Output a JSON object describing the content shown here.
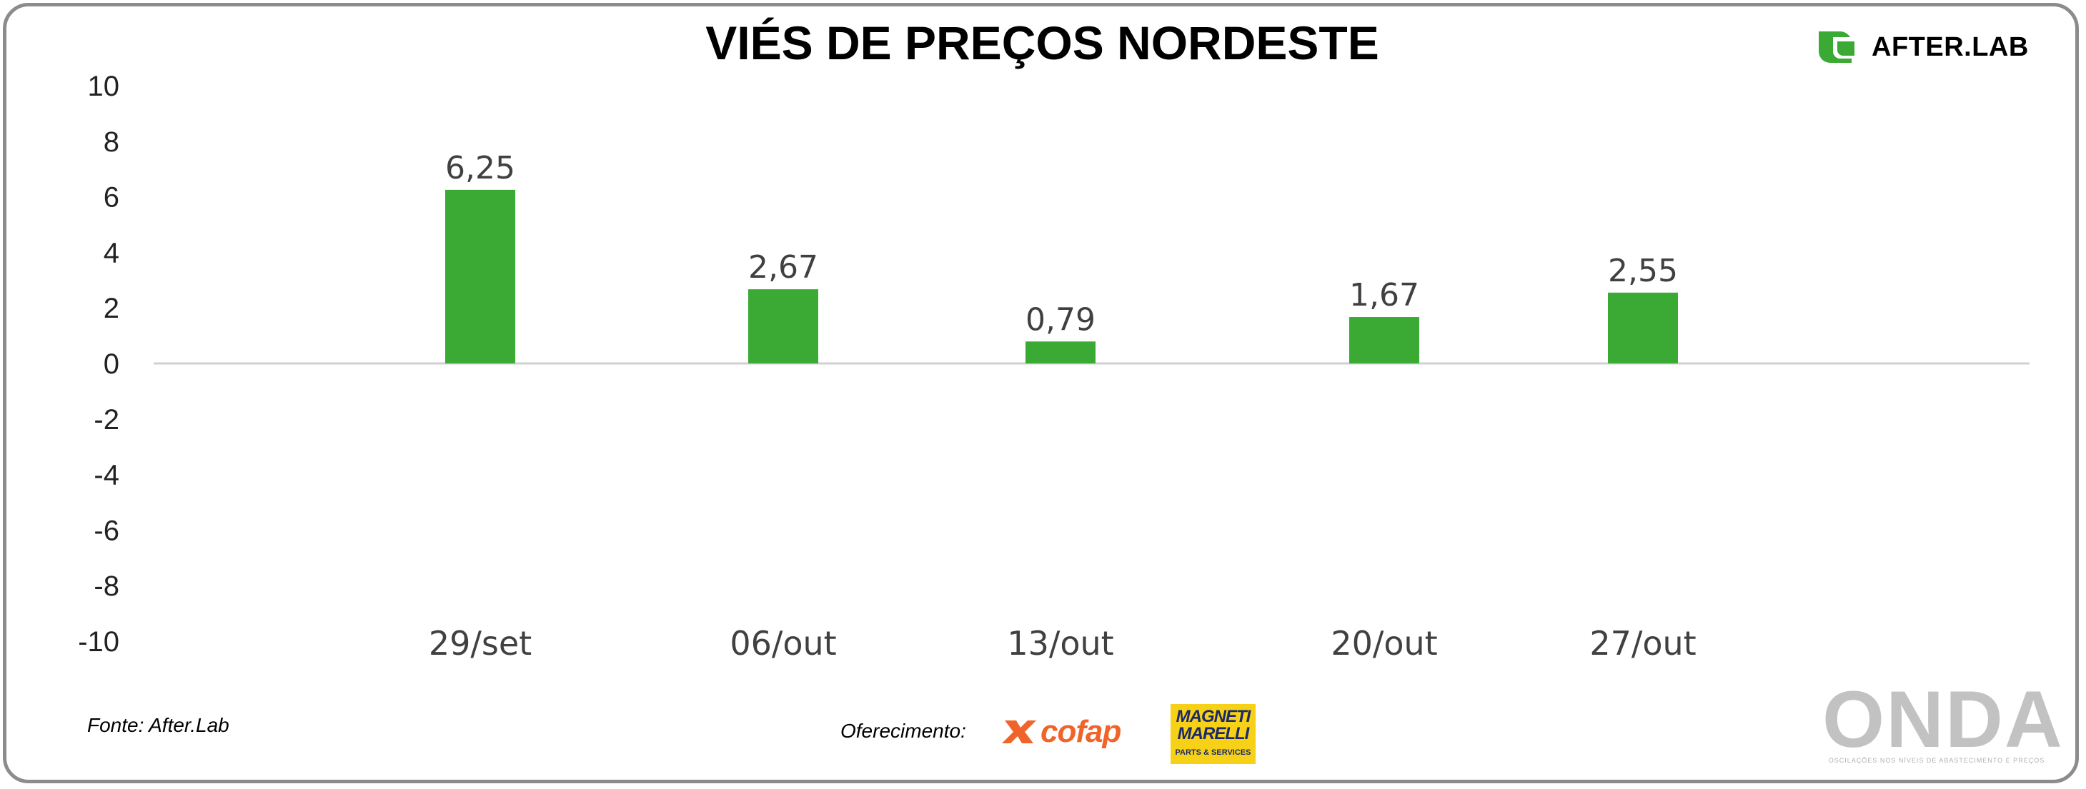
{
  "chart_data": {
    "type": "bar",
    "title": "VIÉS DE PREÇOS NORDESTE",
    "categories": [
      "29/set",
      "06/out",
      "13/out",
      "20/out",
      "27/out"
    ],
    "values": [
      6.25,
      2.67,
      0.79,
      1.67,
      2.55
    ],
    "value_labels": [
      "6,25",
      "2,67",
      "0,79",
      "1,67",
      "2,55"
    ],
    "ylim": [
      -10,
      10
    ],
    "yticks": [
      "10",
      "8",
      "6",
      "4",
      "2",
      "0",
      "-2",
      "-4",
      "-6",
      "-8",
      "-10"
    ],
    "xlabel": "",
    "ylabel": "",
    "grid": false,
    "bar_color": "#3aaa35"
  },
  "footnote": "Fonte: After.Lab",
  "sponsor_label": "Oferecimento:",
  "brand": {
    "name": "AFTER.LAB",
    "icon": "afterlab-logo-icon",
    "color": "#3aaa35"
  },
  "sponsors": {
    "cofap": "cofap",
    "magneti_top": "MAGNETI",
    "magneti_bottom": "MARELLI",
    "magneti_sub": "PARTS & SERVICES"
  },
  "watermark": {
    "word": "ONDA",
    "tagline": "OSCILAÇÕES NOS NÍVEIS DE ABASTECIMENTO E PREÇOS"
  }
}
